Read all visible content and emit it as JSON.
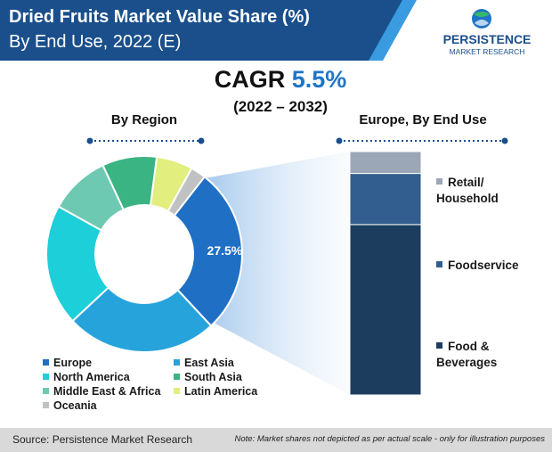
{
  "header": {
    "title_line1": "Dried Fruits Market Value Share (%)",
    "title_line2": "By End Use, 2022 (E)"
  },
  "logo": {
    "line1": "PERSISTENCE",
    "line2": "MARKET RESEARCH"
  },
  "cagr": {
    "label": "CAGR",
    "value": "5.5%",
    "years": "(2022 – 2032)"
  },
  "colors": {
    "title_bg": "#1a4f8b",
    "accent": "#1f75c7",
    "europe": "#1f6fc5",
    "east_asia": "#27a3dc",
    "north_america": "#1ccfd9",
    "south_asia": "#3ab482",
    "middle_east_africa": "#6dc9b2",
    "latin_america": "#e2ee7d",
    "oceania": "#bfc1c3",
    "food_beverages": "#1c3d5e",
    "foodservice": "#315e8e",
    "retail_household": "#9ba7b7"
  },
  "chart_data": [
    {
      "type": "pie",
      "title": "By Region",
      "donut": true,
      "categories": [
        "Europe",
        "East Asia",
        "North America",
        "Middle East & Africa",
        "South Asia",
        "Latin America",
        "Oceania"
      ],
      "values": [
        27.5,
        25,
        20,
        10,
        9,
        6,
        2.5
      ],
      "data_label": "27.5%",
      "legend_placement": "bottom"
    },
    {
      "type": "bar",
      "stacked": true,
      "title": "Europe, By End Use",
      "categories": [
        "Europe"
      ],
      "series": [
        {
          "name": "Food & Beverages",
          "values": [
            70
          ]
        },
        {
          "name": "Foodservice",
          "values": [
            21
          ]
        },
        {
          "name": "Retail/ Household",
          "values": [
            9
          ]
        }
      ],
      "ylim": [
        0,
        100
      ]
    }
  ],
  "footer": {
    "source": "Source: Persistence Market Research",
    "note": "Note: Market shares not depicted as per actual scale - only for illustration purposes"
  }
}
